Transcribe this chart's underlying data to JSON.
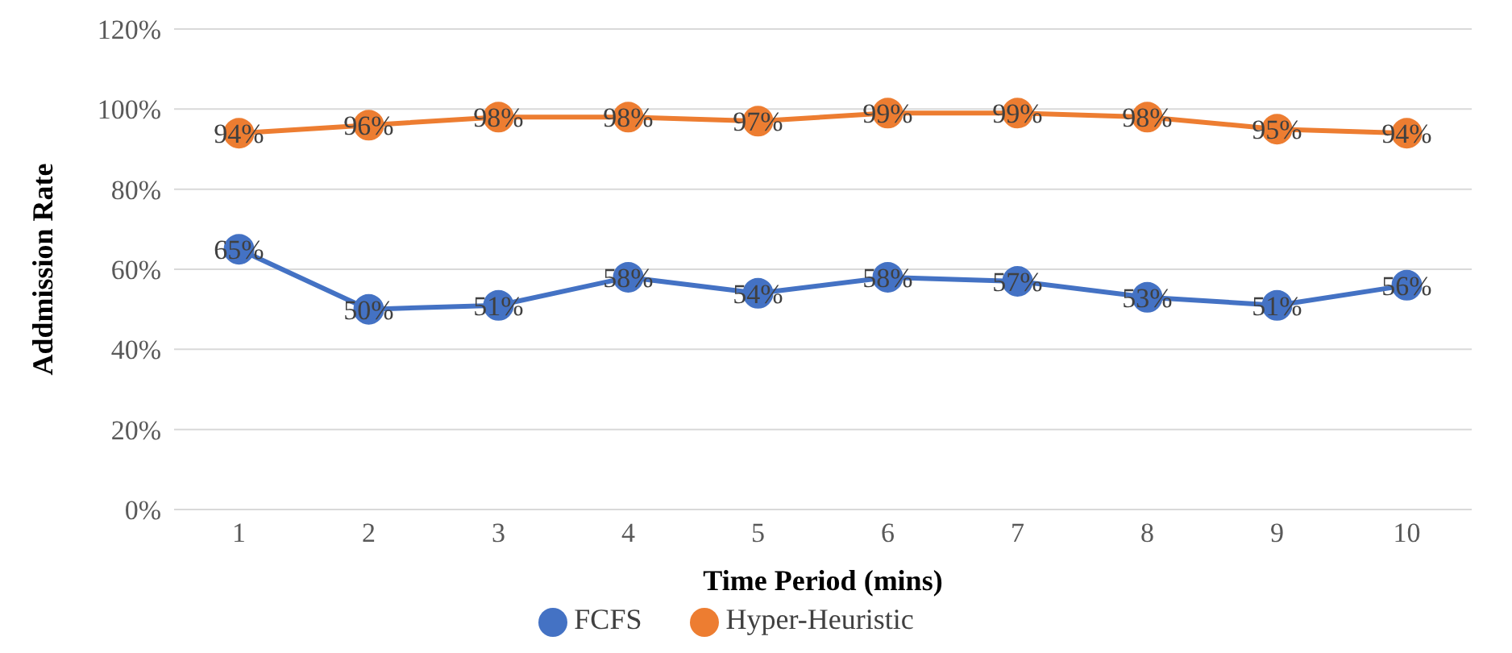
{
  "chart_data": {
    "type": "line",
    "xlabel": "Time Period (mins)",
    "ylabel": "Addmission Rate",
    "categories": [
      "1",
      "2",
      "3",
      "4",
      "5",
      "6",
      "7",
      "8",
      "9",
      "10"
    ],
    "series": [
      {
        "name": "FCFS",
        "color": "#4472c4",
        "values": [
          65,
          50,
          51,
          58,
          54,
          58,
          57,
          53,
          51,
          56
        ],
        "value_labels": [
          "65%",
          "50%",
          "51%",
          "58%",
          "54%",
          "58%",
          "57%",
          "53%",
          "51%",
          "56%"
        ]
      },
      {
        "name": "Hyper-Heuristic",
        "color": "#ed7d31",
        "values": [
          94,
          96,
          98,
          98,
          97,
          99,
          99,
          98,
          95,
          94
        ],
        "value_labels": [
          "94%",
          "96%",
          "98%",
          "98%",
          "97%",
          "99%",
          "99%",
          "98%",
          "95%",
          "94%"
        ]
      }
    ],
    "ylim": [
      0,
      120
    ],
    "yticks": [
      {
        "value": 0,
        "label": "0%"
      },
      {
        "value": 20,
        "label": "20%"
      },
      {
        "value": 40,
        "label": "40%"
      },
      {
        "value": 60,
        "label": "60%"
      },
      {
        "value": 80,
        "label": "80%"
      },
      {
        "value": 100,
        "label": "100%"
      },
      {
        "value": 120,
        "label": "120%"
      }
    ],
    "grid": "y",
    "legend": "bottom",
    "marker": "circle",
    "line_style": "solid"
  }
}
